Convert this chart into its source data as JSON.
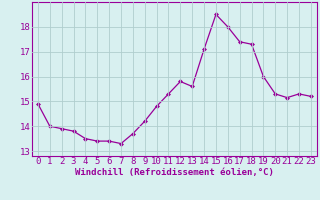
{
  "x": [
    0,
    1,
    2,
    3,
    4,
    5,
    6,
    7,
    8,
    9,
    10,
    11,
    12,
    13,
    14,
    15,
    16,
    17,
    18,
    19,
    20,
    21,
    22,
    23
  ],
  "y": [
    14.9,
    14.0,
    13.9,
    13.8,
    13.5,
    13.4,
    13.4,
    13.3,
    13.7,
    14.2,
    14.8,
    15.3,
    15.8,
    15.6,
    17.1,
    18.5,
    18.0,
    17.4,
    17.3,
    16.0,
    15.3,
    15.15,
    15.3,
    15.2
  ],
  "line_color": "#990099",
  "marker": "D",
  "marker_size": 2,
  "bg_color": "#d8f0f0",
  "grid_color": "#b0cece",
  "xlabel": "Windchill (Refroidissement éolien,°C)",
  "ylim": [
    12.8,
    19.0
  ],
  "xlim": [
    -0.5,
    23.5
  ],
  "yticks": [
    13,
    14,
    15,
    16,
    17,
    18
  ],
  "xticks": [
    0,
    1,
    2,
    3,
    4,
    5,
    6,
    7,
    8,
    9,
    10,
    11,
    12,
    13,
    14,
    15,
    16,
    17,
    18,
    19,
    20,
    21,
    22,
    23
  ],
  "tick_color": "#990099",
  "label_color": "#990099",
  "spine_color": "#990099",
  "font_size": 6.5
}
